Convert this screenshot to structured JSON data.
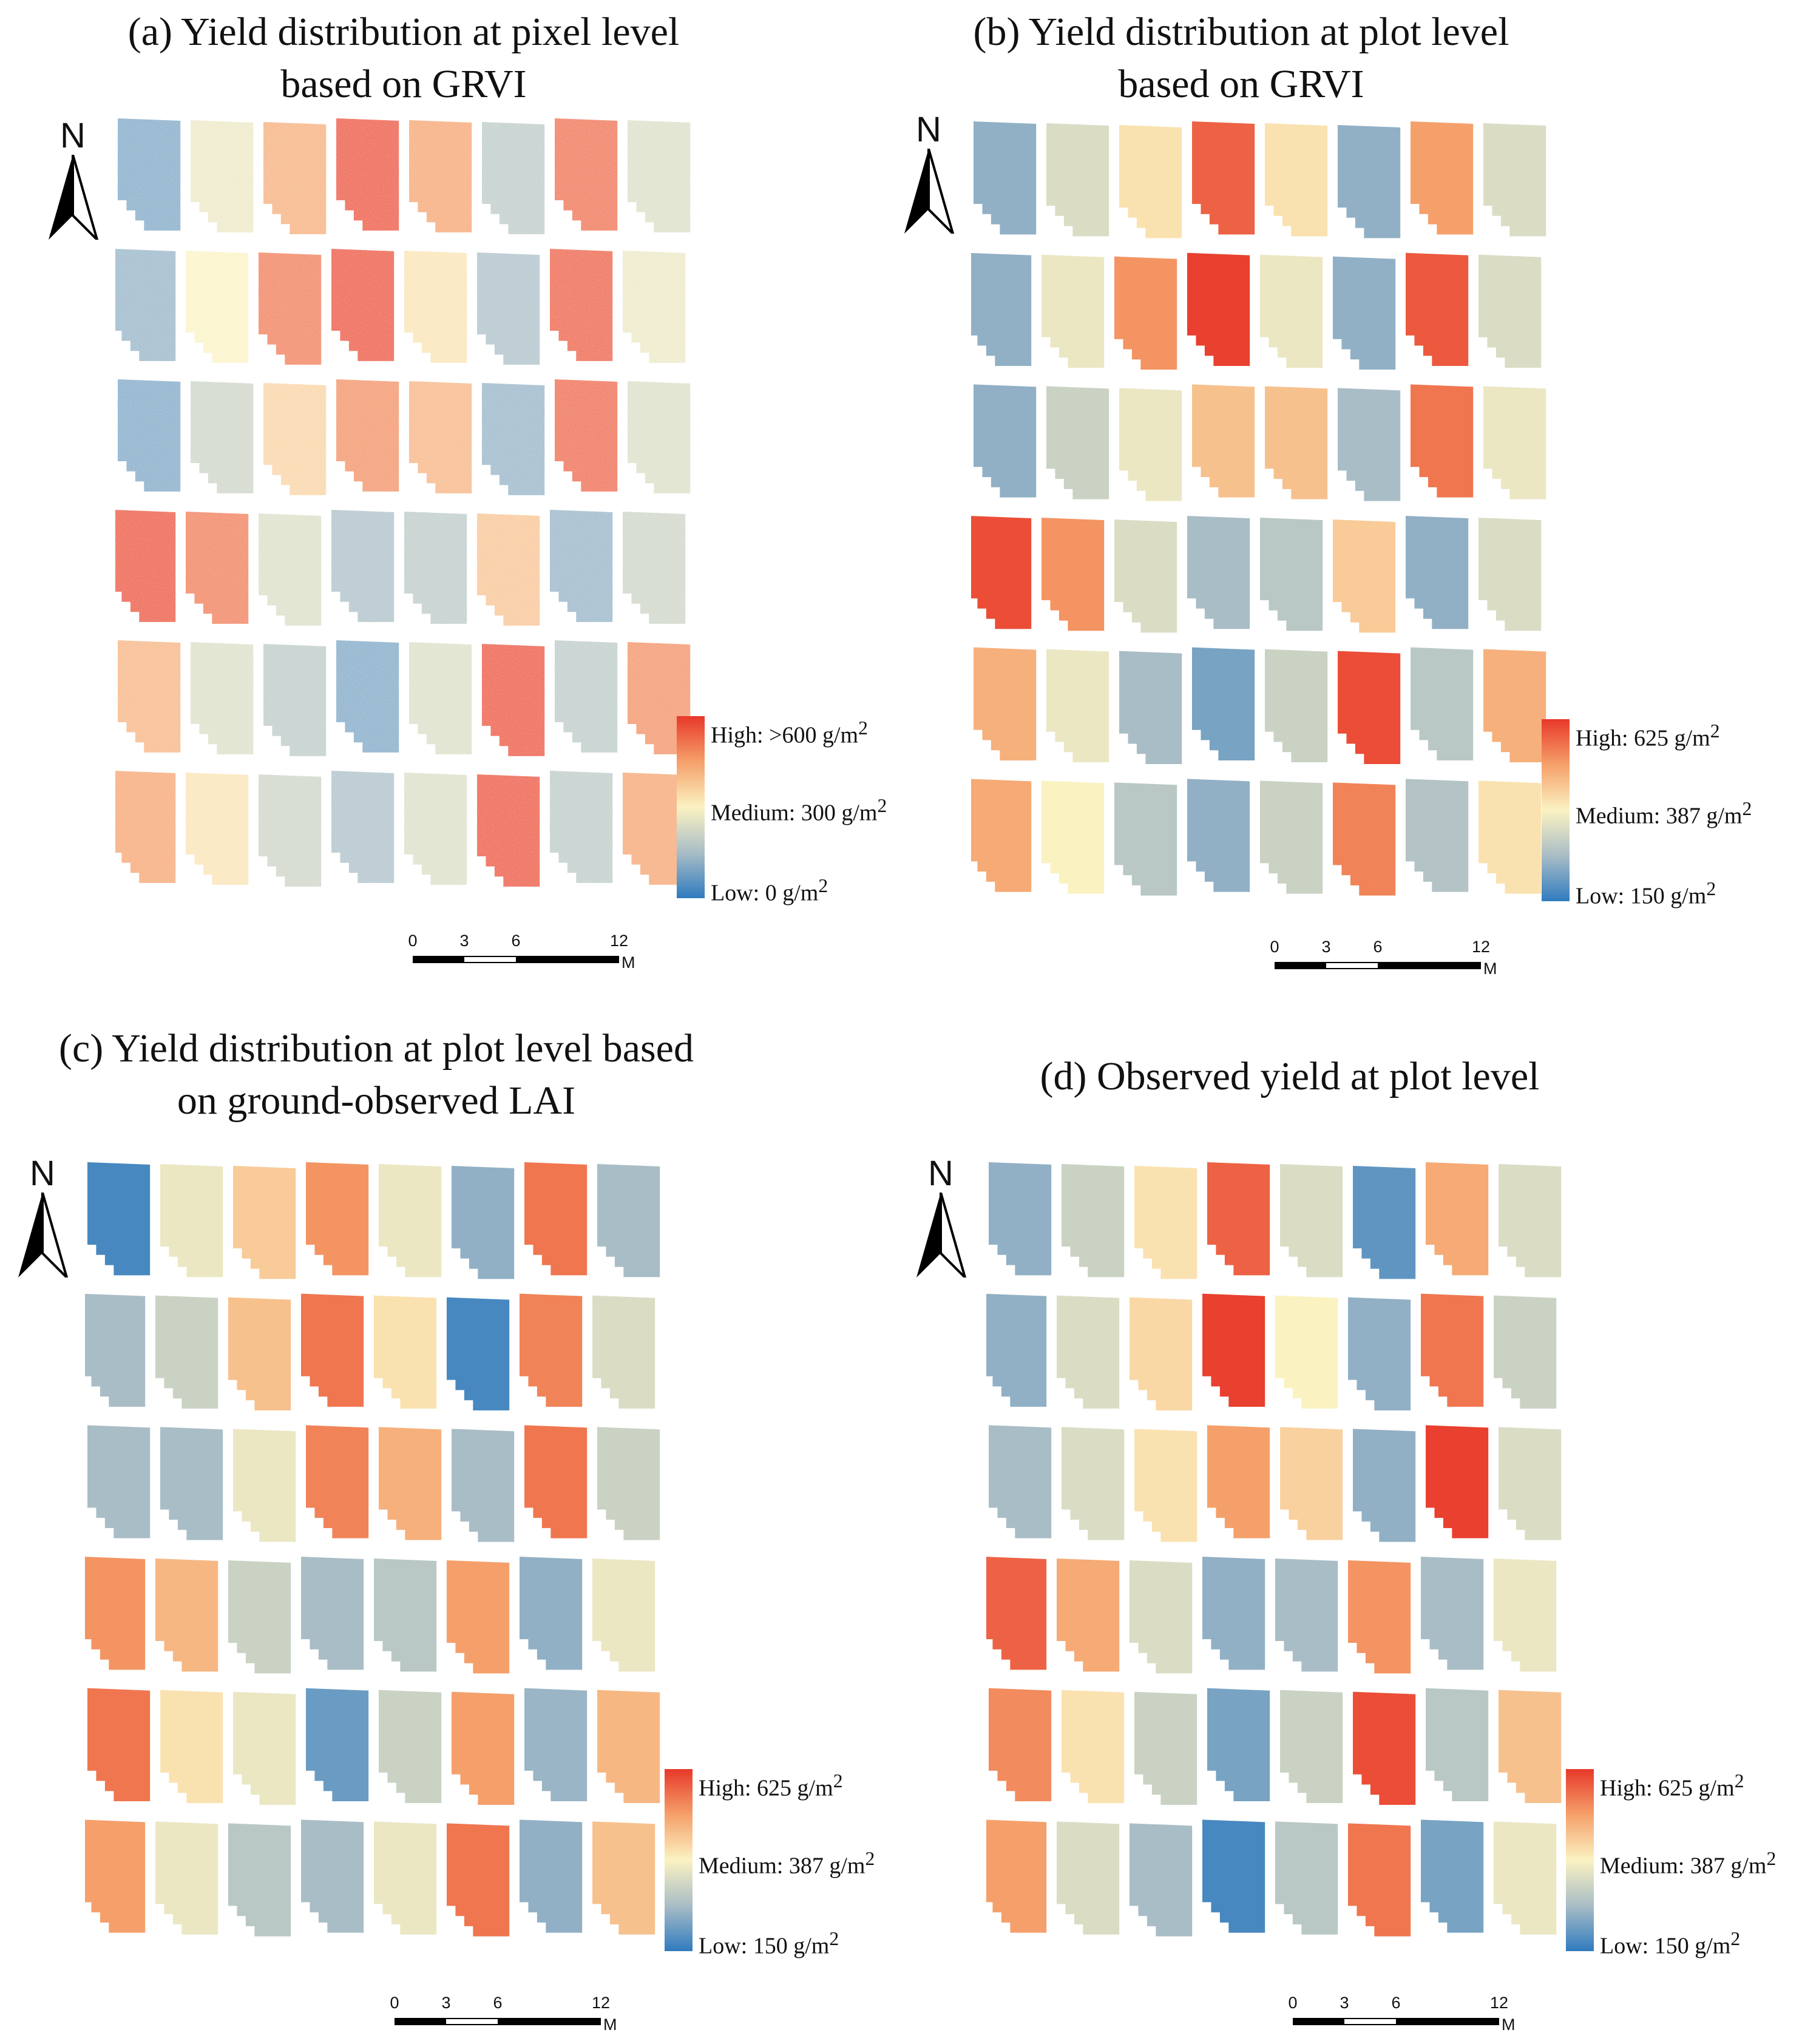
{
  "colors": {
    "high": "#e8382a",
    "medium_high": "#f5a06a",
    "medium": "#fbf2c2",
    "medium_low": "#a9bdc6",
    "low": "#2f7bbf"
  },
  "north_label": "N",
  "scale_bar": {
    "ticks": [
      "0",
      "3",
      "6",
      "12"
    ],
    "unit": "M"
  },
  "panels": [
    {
      "id": "a",
      "title_line1": "(a) Yield distribution at pixel level",
      "title_line2": "based on GRVI",
      "style": "pixel",
      "legend": {
        "high": "High: >600 g/m",
        "medium": "Medium: 300 g/m",
        "low": "Low: 0 g/m",
        "sup": "2"
      },
      "plots": [
        [
          0.15,
          0.45,
          0.72,
          0.95,
          0.75,
          0.3,
          0.88,
          0.4
        ],
        [
          0.2,
          0.5,
          0.85,
          0.95,
          0.55,
          0.25,
          0.92,
          0.45
        ],
        [
          0.15,
          0.35,
          0.6,
          0.8,
          0.7,
          0.2,
          0.9,
          0.4
        ],
        [
          0.95,
          0.85,
          0.4,
          0.25,
          0.3,
          0.65,
          0.2,
          0.35
        ],
        [
          0.7,
          0.4,
          0.3,
          0.15,
          0.4,
          0.95,
          0.3,
          0.8
        ],
        [
          0.75,
          0.55,
          0.35,
          0.25,
          0.4,
          0.95,
          0.3,
          0.75
        ]
      ]
    },
    {
      "id": "b",
      "title_line1": "(b) Yield distribution at plot level",
      "title_line2": "based on GRVI",
      "style": "plot",
      "legend": {
        "high": "High: 625 g/m",
        "medium": "Medium: 387 g/m",
        "low": "Low: 150 g/m",
        "sup": "2"
      },
      "plots": [
        [
          0.2,
          0.4,
          0.55,
          0.9,
          0.55,
          0.2,
          0.75,
          0.4
        ],
        [
          0.2,
          0.45,
          0.78,
          0.98,
          0.45,
          0.2,
          0.92,
          0.4
        ],
        [
          0.2,
          0.35,
          0.45,
          0.65,
          0.65,
          0.25,
          0.85,
          0.45
        ],
        [
          0.95,
          0.78,
          0.4,
          0.25,
          0.3,
          0.62,
          0.2,
          0.4
        ],
        [
          0.7,
          0.45,
          0.25,
          0.15,
          0.35,
          0.95,
          0.3,
          0.7
        ],
        [
          0.72,
          0.5,
          0.3,
          0.2,
          0.35,
          0.82,
          0.28,
          0.55
        ]
      ]
    },
    {
      "id": "c",
      "title_line1": "(c) Yield distribution at plot level based",
      "title_line2": "on ground-observed LAI",
      "style": "plot",
      "legend": {
        "high": "High: 625 g/m",
        "medium": "Medium: 387 g/m",
        "low": "Low: 150 g/m",
        "sup": "2"
      },
      "plots": [
        [
          0.05,
          0.45,
          0.62,
          0.78,
          0.45,
          0.2,
          0.85,
          0.25
        ],
        [
          0.25,
          0.35,
          0.65,
          0.85,
          0.55,
          0.05,
          0.82,
          0.4
        ],
        [
          0.25,
          0.25,
          0.45,
          0.82,
          0.7,
          0.25,
          0.85,
          0.35
        ],
        [
          0.78,
          0.68,
          0.35,
          0.25,
          0.3,
          0.75,
          0.2,
          0.45
        ],
        [
          0.85,
          0.55,
          0.45,
          0.12,
          0.35,
          0.75,
          0.22,
          0.68
        ],
        [
          0.75,
          0.45,
          0.3,
          0.25,
          0.45,
          0.85,
          0.2,
          0.65
        ]
      ]
    },
    {
      "id": "d",
      "title_line1": "",
      "title_line2": "(d) Observed yield at plot level",
      "style": "plot",
      "legend": {
        "high": "High: 625 g/m",
        "medium": "Medium: 387 g/m",
        "low": "Low: 150 g/m",
        "sup": "2"
      },
      "plots": [
        [
          0.2,
          0.35,
          0.55,
          0.9,
          0.4,
          0.1,
          0.72,
          0.4
        ],
        [
          0.2,
          0.4,
          0.58,
          0.98,
          0.5,
          0.2,
          0.85,
          0.35
        ],
        [
          0.25,
          0.4,
          0.55,
          0.75,
          0.6,
          0.2,
          0.98,
          0.4
        ],
        [
          0.9,
          0.72,
          0.4,
          0.2,
          0.25,
          0.78,
          0.25,
          0.45
        ],
        [
          0.8,
          0.55,
          0.35,
          0.15,
          0.35,
          0.95,
          0.3,
          0.65
        ],
        [
          0.75,
          0.4,
          0.25,
          0.05,
          0.3,
          0.85,
          0.15,
          0.45
        ]
      ]
    }
  ]
}
